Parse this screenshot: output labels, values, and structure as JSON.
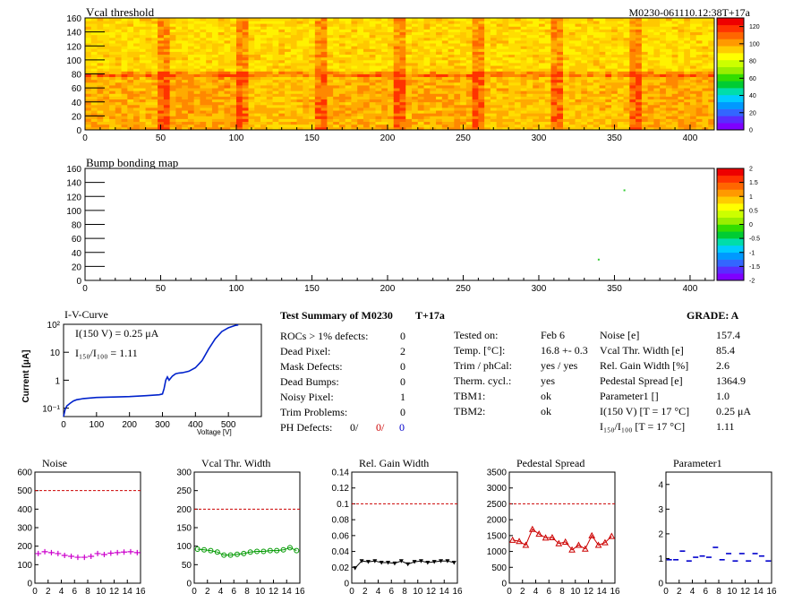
{
  "header": {
    "run_id": "M0230-061110.12:38T+17a"
  },
  "chart_data": [
    {
      "id": "vcal",
      "type": "heatmap",
      "title": "Vcal threshold",
      "xlim": [
        0,
        416
      ],
      "ylim": [
        0,
        160
      ],
      "xticks": [
        0,
        50,
        100,
        150,
        200,
        250,
        300,
        350,
        400
      ],
      "yticks": [
        0,
        20,
        40,
        60,
        80,
        100,
        120,
        140,
        160
      ],
      "palette_ticks": [
        0,
        20,
        40,
        60,
        80,
        100,
        120
      ],
      "palette_range": [
        0,
        130
      ]
    },
    {
      "id": "bump",
      "type": "heatmap",
      "title": "Bump bonding map",
      "xlim": [
        0,
        416
      ],
      "ylim": [
        0,
        160
      ],
      "xticks": [
        0,
        50,
        100,
        150,
        200,
        250,
        300,
        350,
        400
      ],
      "yticks": [
        0,
        20,
        40,
        60,
        80,
        100,
        120,
        140,
        160
      ],
      "palette_ticks": [
        2,
        1.5,
        1,
        0.5,
        0,
        -0.5,
        -1,
        -1.5,
        -2
      ],
      "palette_range": [
        -2,
        2
      ],
      "points": [
        {
          "x": 356,
          "y": 130
        },
        {
          "x": 339,
          "y": 31
        }
      ]
    },
    {
      "id": "iv",
      "type": "line",
      "title": "I-V-Curve",
      "xlabel": "Voltage [V]",
      "ylabel": "Current [μA]",
      "xlim": [
        0,
        600
      ],
      "ylim_log": [
        0.05,
        100
      ],
      "xticks": [
        0,
        100,
        200,
        300,
        400,
        500
      ],
      "yticks": [
        "10⁻¹",
        "1",
        "10",
        "10²"
      ],
      "annotation1": "I(150 V) = 0.25 μA",
      "annotation2": "I₁₅₀/I₁₀₀ =  1.11",
      "x": [
        0,
        5,
        10,
        20,
        30,
        40,
        50,
        60,
        80,
        100,
        150,
        200,
        250,
        290,
        300,
        305,
        310,
        315,
        320,
        330,
        340,
        350,
        360,
        380,
        400,
        420,
        440,
        460,
        480,
        500,
        520,
        530
      ],
      "y": [
        0.05,
        0.09,
        0.12,
        0.15,
        0.18,
        0.2,
        0.21,
        0.22,
        0.23,
        0.24,
        0.25,
        0.26,
        0.28,
        0.3,
        0.32,
        0.5,
        1.0,
        1.3,
        1.0,
        1.4,
        1.7,
        1.8,
        1.85,
        2.1,
        2.8,
        5.0,
        13.0,
        30.0,
        55.0,
        75.0,
        90.0,
        95.0
      ]
    },
    {
      "id": "noise",
      "type": "scatter",
      "title": "Noise",
      "xlim": [
        0,
        16
      ],
      "ylim": [
        0,
        600
      ],
      "xticks": [
        0,
        2,
        4,
        6,
        8,
        10,
        12,
        14,
        16
      ],
      "yticks": [
        0,
        100,
        200,
        300,
        400,
        500,
        600
      ],
      "limit": 500,
      "color": "#cc00cc",
      "marker": "plus",
      "x": [
        0,
        1,
        2,
        3,
        4,
        5,
        6,
        7,
        8,
        9,
        10,
        11,
        12,
        13,
        14,
        15
      ],
      "values": [
        160,
        170,
        165,
        160,
        150,
        145,
        140,
        140,
        145,
        160,
        155,
        162,
        165,
        168,
        170,
        165
      ]
    },
    {
      "id": "vcalwidth",
      "type": "line",
      "title": "Vcal Thr. Width",
      "xlim": [
        0,
        16
      ],
      "ylim": [
        0,
        300
      ],
      "xticks": [
        0,
        2,
        4,
        6,
        8,
        10,
        12,
        14,
        16
      ],
      "yticks": [
        0,
        50,
        100,
        150,
        200,
        250,
        300
      ],
      "limit": 200,
      "color": "#009900",
      "marker": "circle",
      "x": [
        0,
        1,
        2,
        3,
        4,
        5,
        6,
        7,
        8,
        9,
        10,
        11,
        12,
        13,
        14,
        15
      ],
      "values": [
        92,
        90,
        88,
        84,
        76,
        76,
        78,
        80,
        84,
        86,
        86,
        88,
        88,
        90,
        96,
        88
      ]
    },
    {
      "id": "gain",
      "type": "line",
      "title": "Rel. Gain Width",
      "xlim": [
        0,
        16
      ],
      "ylim": [
        0,
        0.14
      ],
      "xticks": [
        0,
        2,
        4,
        6,
        8,
        10,
        12,
        14,
        16
      ],
      "yticks": [
        "0",
        "0.02",
        "0.04",
        "0.06",
        "0.08",
        "0.1",
        "0.12",
        "0.14"
      ],
      "limit": 0.1,
      "color": "#000000",
      "marker": "triangle-down",
      "x": [
        0,
        1,
        2,
        3,
        4,
        5,
        6,
        7,
        8,
        9,
        10,
        11,
        12,
        13,
        14,
        15
      ],
      "values": [
        0.019,
        0.028,
        0.027,
        0.028,
        0.026,
        0.026,
        0.025,
        0.028,
        0.024,
        0.027,
        0.028,
        0.026,
        0.027,
        0.028,
        0.028,
        0.026
      ]
    },
    {
      "id": "pedestal",
      "type": "line",
      "title": "Pedestal Spread",
      "xlim": [
        0,
        16
      ],
      "ylim": [
        0,
        3500
      ],
      "xticks": [
        0,
        2,
        4,
        6,
        8,
        10,
        12,
        14,
        16
      ],
      "yticks": [
        0,
        500,
        1000,
        1500,
        2000,
        2500,
        3000,
        3500
      ],
      "limit": 2500,
      "color": "#cc0000",
      "marker": "triangle-up",
      "x": [
        0,
        1,
        2,
        3,
        4,
        5,
        6,
        7,
        8,
        9,
        10,
        11,
        12,
        13,
        14,
        15
      ],
      "values": [
        1360,
        1320,
        1200,
        1700,
        1550,
        1430,
        1440,
        1250,
        1300,
        1050,
        1200,
        1080,
        1500,
        1200,
        1280,
        1480
      ]
    },
    {
      "id": "param1",
      "type": "scatter",
      "title": "Parameter1",
      "xlim": [
        0,
        16
      ],
      "ylim": [
        0,
        4.5
      ],
      "xticks": [
        0,
        2,
        4,
        6,
        8,
        10,
        12,
        14,
        16
      ],
      "yticks": [
        0,
        1,
        2,
        3,
        4
      ],
      "color": "#0000cc",
      "marker": "dash",
      "x": [
        0,
        1,
        2,
        3,
        4,
        5,
        6,
        7,
        8,
        9,
        10,
        11,
        12,
        13,
        14,
        15
      ],
      "values": [
        0.95,
        0.95,
        1.3,
        0.9,
        1.05,
        1.1,
        1.05,
        1.45,
        0.95,
        1.2,
        0.9,
        1.2,
        0.9,
        1.2,
        1.1,
        0.9
      ]
    }
  ],
  "summary": {
    "title": "Test Summary of M0230",
    "subtitle": "T+17a",
    "grade": "GRADE:  A",
    "defects": [
      {
        "label": "ROCs > 1% defects:",
        "value": "0"
      },
      {
        "label": "Dead Pixel:",
        "value": "2"
      },
      {
        "label": "Mask Defects:",
        "value": "0"
      },
      {
        "label": "Dead Bumps:",
        "value": "0"
      },
      {
        "label": "Noisy Pixel:",
        "value": "1"
      },
      {
        "label": "Trim Problems:",
        "value": "0"
      }
    ],
    "ph_label": "PH Defects:",
    "ph_values": [
      "0/",
      "0/",
      "0"
    ],
    "tests": [
      {
        "label": "Tested on:",
        "value": "Feb 6"
      },
      {
        "label": "Temp. [°C]:",
        "value": "16.8 +- 0.3"
      },
      {
        "label": "Trim / phCal:",
        "value": "yes / yes"
      },
      {
        "label": "Therm. cycl.:",
        "value": "yes"
      },
      {
        "label": "TBM1:",
        "value": "ok"
      },
      {
        "label": "TBM2:",
        "value": "ok"
      }
    ],
    "params": [
      {
        "label": "Noise [e]",
        "value": "157.4"
      },
      {
        "label": "Vcal Thr. Width [e]",
        "value": "85.4"
      },
      {
        "label": "Rel. Gain Width [%]",
        "value": "2.6"
      },
      {
        "label": "Pedestal Spread [e]",
        "value": "1364.9"
      },
      {
        "label": "Parameter1 []",
        "value": "1.0"
      },
      {
        "label": "I(150 V) [T = 17 °C]",
        "value": "0.25 μA"
      },
      {
        "label": "I₁₅₀/I₁₀₀  [T = 17 °C]",
        "value": "1.11"
      }
    ]
  }
}
